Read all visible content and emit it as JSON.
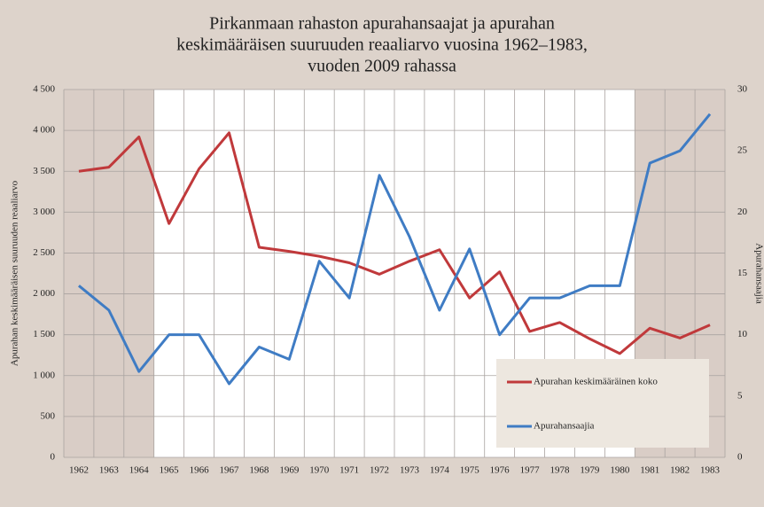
{
  "chart_data": {
    "type": "line",
    "title": [
      "Pirkanmaan rahaston apurahansaajat ja apurahan",
      "keskimääräisen suuruuden reaaliarvo vuosina 1962–1983,",
      "vuoden 2009 rahassa"
    ],
    "categories": [
      "1962",
      "1963",
      "1964",
      "1965",
      "1966",
      "1967",
      "1968",
      "1969",
      "1970",
      "1971",
      "1972",
      "1973",
      "1974",
      "1975",
      "1976",
      "1977",
      "1978",
      "1979",
      "1980",
      "1981",
      "1982",
      "1983"
    ],
    "series": [
      {
        "name": "Apurahan keskimääräinen koko",
        "color": "#c0393b",
        "values": [
          3500,
          3550,
          3920,
          2860,
          3530,
          3970,
          2570,
          2520,
          2460,
          2380,
          2240,
          2400,
          2540,
          1950,
          2270,
          1540,
          1650,
          1450,
          1270,
          1580,
          1460,
          1620
        ]
      },
      {
        "name": "Apurahansaajia",
        "color": "#3f7cc4",
        "axis": "y2",
        "values": [
          14,
          12,
          7,
          10,
          10,
          6,
          9,
          8,
          16,
          13,
          23,
          18,
          12,
          17,
          10,
          13,
          13,
          14,
          14,
          24,
          25,
          28
        ]
      }
    ],
    "ylabel": "Apurahan keskimääräisen suuruuden reaaliarvo",
    "y2label": "Apurahansaajia",
    "ylim": [
      0,
      4500
    ],
    "yticks": [
      0,
      500,
      {
        "value": 1000,
        "label": "1 000"
      },
      {
        "value": 1500,
        "label": "1 500"
      },
      {
        "value": 2000,
        "label": "2 000"
      },
      {
        "value": 2500,
        "label": "2 500"
      },
      {
        "value": 3000,
        "label": "3 000"
      },
      {
        "value": 3500,
        "label": "3 500"
      },
      {
        "value": 4000,
        "label": "4 000"
      },
      {
        "value": 4500,
        "label": "4 500"
      }
    ],
    "y2lim": [
      0,
      30
    ],
    "y2ticks": [
      0,
      5,
      10,
      15,
      20,
      25,
      30
    ],
    "grid": true,
    "legend": "lower right"
  }
}
